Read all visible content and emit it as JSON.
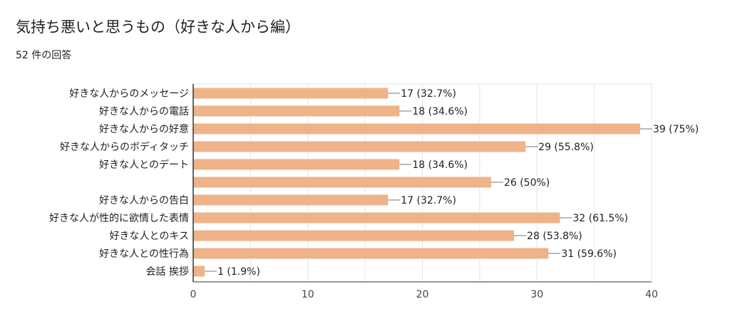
{
  "header": {
    "title": "気持ち悪いと思うもの（好きな人から編）",
    "response_count": "52 件の回答"
  },
  "colors": {
    "bar": "#eeb388",
    "grid": "#e6e6e6",
    "axis": "#333333",
    "text": "#202124"
  },
  "chart_data": {
    "type": "bar",
    "orientation": "horizontal",
    "title": "気持ち悪いと思うもの（好きな人から編）",
    "categories": [
      "好きな人からのメッセージ",
      "好きな人からの電話",
      "好きな人からの好意",
      "好きな人からのボディタッチ",
      "好きな人とのデート",
      "",
      "好きな人からの告白",
      "好きな人が性的に欲情した表情",
      "好きな人とのキス",
      "好きな人との性行為",
      "会話 挨拶"
    ],
    "values": [
      17,
      18,
      39,
      29,
      18,
      26,
      17,
      32,
      28,
      31,
      1
    ],
    "value_labels": [
      "17 (32.7%)",
      "18 (34.6%)",
      "39 (75%)",
      "29 (55.8%)",
      "18 (34.6%)",
      "26 (50%)",
      "17 (32.7%)",
      "32 (61.5%)",
      "28 (53.8%)",
      "31 (59.6%)",
      "1 (1.9%)"
    ],
    "xlim": [
      0,
      40
    ],
    "xticks": [
      0,
      10,
      20,
      30,
      40
    ],
    "grid": true,
    "legend": "none"
  }
}
